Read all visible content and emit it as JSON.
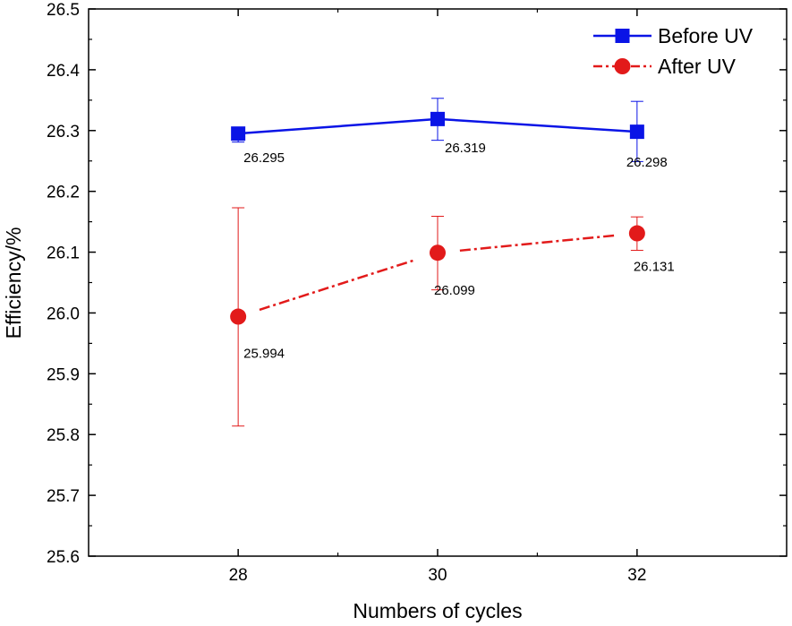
{
  "chart_data": {
    "type": "line",
    "xlabel": "Numbers of cycles",
    "ylabel": "Efficiency/%",
    "x": [
      28,
      30,
      32
    ],
    "xlim": [
      26.5,
      33.5
    ],
    "ylim": [
      25.6,
      26.5
    ],
    "xticks": [
      "28",
      "30",
      "32"
    ],
    "yticks": [
      "25.6",
      "25.7",
      "25.8",
      "25.9",
      "26.0",
      "26.1",
      "26.2",
      "26.3",
      "26.4",
      "26.5"
    ],
    "grid": false,
    "legend_position": "top-right",
    "series": [
      {
        "name": "Before UV",
        "color": "#0a14e6",
        "marker": "square",
        "line_style": "solid",
        "values": [
          26.295,
          26.319,
          26.298
        ],
        "error_low": [
          26.281,
          26.284,
          26.249
        ],
        "error_high": [
          26.305,
          26.353,
          26.348
        ],
        "value_labels": [
          "26.295",
          "26.319",
          "26.298"
        ]
      },
      {
        "name": "After UV",
        "color": "#e21a1a",
        "marker": "circle",
        "line_style": "dash-dot",
        "values": [
          25.994,
          26.099,
          26.131
        ],
        "error_low": [
          25.814,
          26.038,
          26.103
        ],
        "error_high": [
          26.173,
          26.159,
          26.158
        ],
        "value_labels": [
          "25.994",
          "26.099",
          "26.131"
        ]
      }
    ]
  }
}
